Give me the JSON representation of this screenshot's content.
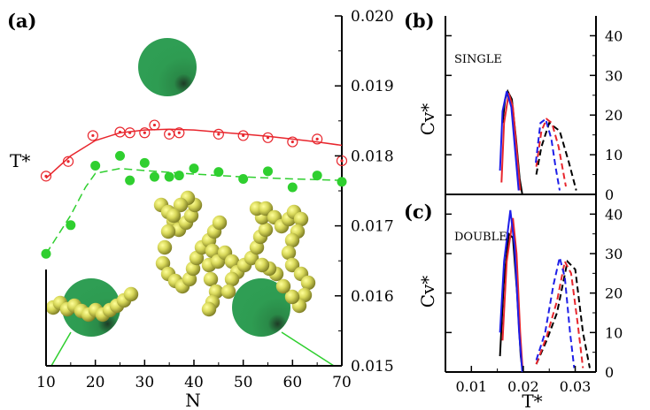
{
  "chart_data": [
    {
      "panel": "(a)",
      "type": "scatter",
      "xlabel": "N",
      "ylabel": "T*",
      "xlim": [
        10,
        70
      ],
      "ylim": [
        0.015,
        0.02
      ],
      "x_ticks": [
        "10",
        "20",
        "30",
        "40",
        "50",
        "60",
        "70"
      ],
      "y_ticks": [
        "0.015",
        "0.016",
        "0.017",
        "0.018",
        "0.019",
        "0.020"
      ],
      "y_axis_side": "right",
      "series": [
        {
          "color": "#e8262d",
          "marker": "open-circle",
          "points": [
            [
              10,
              0.01771
            ],
            [
              14.5,
              0.01792
            ],
            [
              19.5,
              0.01829
            ],
            [
              25,
              0.01834
            ],
            [
              27,
              0.01833
            ],
            [
              30,
              0.01833
            ],
            [
              32,
              0.01844
            ],
            [
              35,
              0.01831
            ],
            [
              37,
              0.01833
            ],
            [
              45,
              0.01831
            ],
            [
              50,
              0.01829
            ],
            [
              55,
              0.01826
            ],
            [
              60,
              0.0182
            ],
            [
              65,
              0.01824
            ],
            [
              70,
              0.01793
            ]
          ],
          "fit": [
            [
              10,
              0.01768
            ],
            [
              15,
              0.018
            ],
            [
              20,
              0.01822
            ],
            [
              25,
              0.01833
            ],
            [
              30,
              0.01837
            ],
            [
              35,
              0.01838
            ],
            [
              40,
              0.01837
            ],
            [
              45,
              0.01834
            ],
            [
              50,
              0.01831
            ],
            [
              55,
              0.01828
            ],
            [
              60,
              0.01824
            ],
            [
              65,
              0.0182
            ],
            [
              70,
              0.01815
            ]
          ],
          "fit_style": "solid"
        },
        {
          "color": "#2fcf2f",
          "marker": "filled-circle",
          "points": [
            [
              10,
              0.0166
            ],
            [
              15,
              0.01701
            ],
            [
              20,
              0.01786
            ],
            [
              25,
              0.018
            ],
            [
              27,
              0.01765
            ],
            [
              30,
              0.0179
            ],
            [
              32,
              0.0177
            ],
            [
              35,
              0.0177
            ],
            [
              37,
              0.01772
            ],
            [
              40,
              0.01782
            ],
            [
              45,
              0.01777
            ],
            [
              50,
              0.01767
            ],
            [
              55,
              0.01778
            ],
            [
              60,
              0.01755
            ],
            [
              65,
              0.01772
            ],
            [
              70,
              0.01763
            ]
          ],
          "fit": [
            [
              10,
              0.0166
            ],
            [
              15,
              0.01715
            ],
            [
              18,
              0.01755
            ],
            [
              20,
              0.01775
            ],
            [
              25,
              0.01782
            ],
            [
              30,
              0.01779
            ],
            [
              40,
              0.01774
            ],
            [
              50,
              0.0177
            ],
            [
              60,
              0.01767
            ],
            [
              70,
              0.01765
            ]
          ],
          "fit_style": "dashed"
        }
      ]
    },
    {
      "panel": "(b)",
      "type": "line",
      "annotation": "SINGLE",
      "xlabel": "",
      "ylabel": "Cv*",
      "xlim": [
        0.005,
        0.034
      ],
      "ylim": [
        0,
        45
      ],
      "y_ticks": [
        "0",
        "10",
        "20",
        "30",
        "40"
      ],
      "series": [
        {
          "color": "#000000",
          "style": "solid",
          "points": [
            [
              0.016,
              18
            ],
            [
              0.0165,
              24
            ],
            [
              0.017,
              26
            ],
            [
              0.0178,
              24
            ],
            [
              0.0186,
              14
            ],
            [
              0.0193,
              4
            ],
            [
              0.0198,
              0
            ]
          ]
        },
        {
          "color": "#e8262d",
          "style": "solid",
          "points": [
            [
              0.0158,
              3
            ],
            [
              0.0163,
              18
            ],
            [
              0.0172,
              25.5
            ],
            [
              0.018,
              22
            ],
            [
              0.0188,
              10
            ],
            [
              0.0194,
              1
            ]
          ]
        },
        {
          "color": "#1e1ee8",
          "style": "solid",
          "points": [
            [
              0.0155,
              6
            ],
            [
              0.016,
              21
            ],
            [
              0.0168,
              26
            ],
            [
              0.0177,
              22
            ],
            [
              0.0185,
              10
            ],
            [
              0.0191,
              1
            ]
          ]
        },
        {
          "color": "#000000",
          "style": "dashed",
          "points": [
            [
              0.0225,
              5
            ],
            [
              0.0235,
              12
            ],
            [
              0.025,
              18
            ],
            [
              0.027,
              16
            ],
            [
              0.0288,
              8
            ],
            [
              0.0302,
              1
            ]
          ]
        },
        {
          "color": "#e8262d",
          "style": "dashed",
          "points": [
            [
              0.0225,
              7
            ],
            [
              0.0235,
              16
            ],
            [
              0.0245,
              19
            ],
            [
              0.0255,
              18
            ],
            [
              0.0268,
              12
            ],
            [
              0.0282,
              2
            ]
          ]
        },
        {
          "color": "#1e1ee8",
          "style": "dashed",
          "points": [
            [
              0.0224,
              8
            ],
            [
              0.0233,
              18
            ],
            [
              0.0243,
              19
            ],
            [
              0.0254,
              14
            ],
            [
              0.0262,
              7
            ],
            [
              0.027,
              1
            ]
          ]
        }
      ]
    },
    {
      "panel": "(c)",
      "type": "line",
      "annotation": "DOUBLE",
      "xlabel": "T*",
      "ylabel": "Cv*",
      "xlim": [
        0.005,
        0.034
      ],
      "ylim": [
        0,
        45
      ],
      "x_ticks": [
        "0.01",
        "0.02",
        "0.03"
      ],
      "y_ticks": [
        "0",
        "10",
        "20",
        "30",
        "40"
      ],
      "series": [
        {
          "color": "#000000",
          "style": "solid",
          "points": [
            [
              0.0155,
              4
            ],
            [
              0.0162,
              22
            ],
            [
              0.0172,
              35
            ],
            [
              0.018,
              34
            ],
            [
              0.0188,
              20
            ],
            [
              0.0195,
              4
            ],
            [
              0.0199,
              0
            ]
          ]
        },
        {
          "color": "#e8262d",
          "style": "solid",
          "points": [
            [
              0.016,
              8
            ],
            [
              0.0168,
              28
            ],
            [
              0.018,
              39
            ],
            [
              0.0187,
              30
            ],
            [
              0.0194,
              10
            ],
            [
              0.0199,
              0
            ]
          ]
        },
        {
          "color": "#1e1ee8",
          "style": "solid",
          "points": [
            [
              0.0155,
              10
            ],
            [
              0.0163,
              28
            ],
            [
              0.0175,
              41
            ],
            [
              0.0183,
              32
            ],
            [
              0.0192,
              10
            ],
            [
              0.0198,
              0
            ]
          ]
        },
        {
          "color": "#000000",
          "style": "dashed",
          "points": [
            [
              0.0225,
              2
            ],
            [
              0.0245,
              8
            ],
            [
              0.0265,
              15
            ],
            [
              0.0285,
              28
            ],
            [
              0.03,
              26
            ],
            [
              0.0315,
              10
            ],
            [
              0.0328,
              1
            ]
          ]
        },
        {
          "color": "#e8262d",
          "style": "dashed",
          "points": [
            [
              0.0225,
              2
            ],
            [
              0.0245,
              9
            ],
            [
              0.0265,
              18
            ],
            [
              0.028,
              28
            ],
            [
              0.0292,
              25
            ],
            [
              0.0305,
              12
            ],
            [
              0.0315,
              1
            ]
          ]
        },
        {
          "color": "#1e1ee8",
          "style": "dashed",
          "points": [
            [
              0.0225,
              3
            ],
            [
              0.0242,
              10
            ],
            [
              0.0258,
              22
            ],
            [
              0.027,
              29
            ],
            [
              0.028,
              24
            ],
            [
              0.029,
              10
            ],
            [
              0.0298,
              1
            ]
          ]
        }
      ]
    }
  ]
}
